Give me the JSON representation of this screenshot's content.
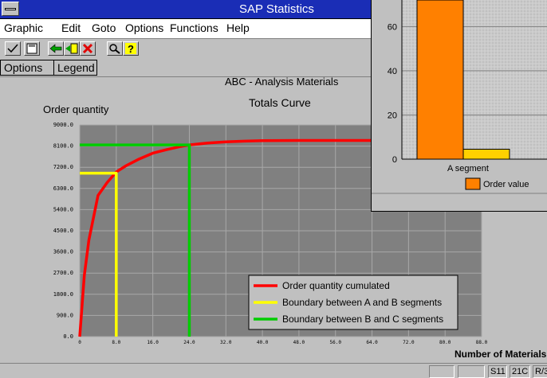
{
  "window": {
    "title": "SAP Statistics"
  },
  "menus": [
    {
      "label": "Graphic"
    },
    {
      "label": "Edit"
    },
    {
      "label": "Goto"
    },
    {
      "label": "Options"
    },
    {
      "label": "Functions"
    },
    {
      "label": "Help"
    }
  ],
  "toolbar": {
    "icons": [
      "check-icon",
      "save-icon",
      "back-icon",
      "exit-icon",
      "cancel-icon",
      "find-icon",
      "help-icon"
    ]
  },
  "tabs": [
    {
      "label": "Options"
    },
    {
      "label": "Legend"
    }
  ],
  "main": {
    "heading": "ABC - Analysis Materials",
    "subtitle": "Totals Curve",
    "ylabel": "Order quantity",
    "xlabel": "Number of Materials"
  },
  "chart_data": [
    {
      "type": "line",
      "title": "Totals Curve",
      "ylabel": "Order quantity",
      "xlabel": "Number of Materials",
      "xlim": [
        0,
        88
      ],
      "ylim": [
        0,
        9000
      ],
      "grid": true,
      "legend_position": "bottom-right",
      "x_ticks": [
        "0",
        "8.0",
        "16.0",
        "24.0",
        "32.0",
        "40.0",
        "48.0",
        "56.0",
        "64.0",
        "72.0",
        "80.0",
        "88.0"
      ],
      "y_ticks": [
        "0.0",
        "900.0",
        "1800.0",
        "2700.0",
        "3600.0",
        "4500.0",
        "5400.0",
        "6300.0",
        "7200.0",
        "8100.0",
        "9000.0"
      ],
      "series": [
        {
          "name": "Order quantity cumulated",
          "color": "#ff0000",
          "x": [
            0,
            1,
            2,
            4,
            6,
            8,
            10,
            13,
            16,
            19,
            22,
            24,
            28,
            32,
            36,
            40,
            48,
            56,
            64,
            66
          ],
          "y": [
            0,
            2600,
            4100,
            6000,
            6550,
            7000,
            7250,
            7550,
            7800,
            7950,
            8080,
            8150,
            8230,
            8280,
            8310,
            8330,
            8340,
            8340,
            8340,
            8340
          ]
        },
        {
          "name": "Boundary between A and B segments",
          "color": "#ffff00",
          "x": [
            0,
            8,
            8
          ],
          "y": [
            6950,
            6950,
            0
          ]
        },
        {
          "name": "Boundary between B and C segments",
          "color": "#00cc00",
          "x": [
            0,
            24,
            24
          ],
          "y": [
            8150,
            8150,
            0
          ]
        }
      ]
    },
    {
      "type": "bar",
      "categories": [
        "A segment"
      ],
      "series": [
        {
          "name": "Order value",
          "color": "#ff8000",
          "values": [
            72
          ]
        },
        {
          "name": "",
          "color": "#ffd000",
          "values": [
            4.5
          ]
        }
      ],
      "y_ticks": [
        "0",
        "20",
        "40",
        "60"
      ],
      "ylim": [
        0,
        72
      ],
      "grid": true,
      "legend_position": "bottom"
    }
  ],
  "status": [
    "",
    "",
    "S11",
    "21C",
    "R/3"
  ]
}
